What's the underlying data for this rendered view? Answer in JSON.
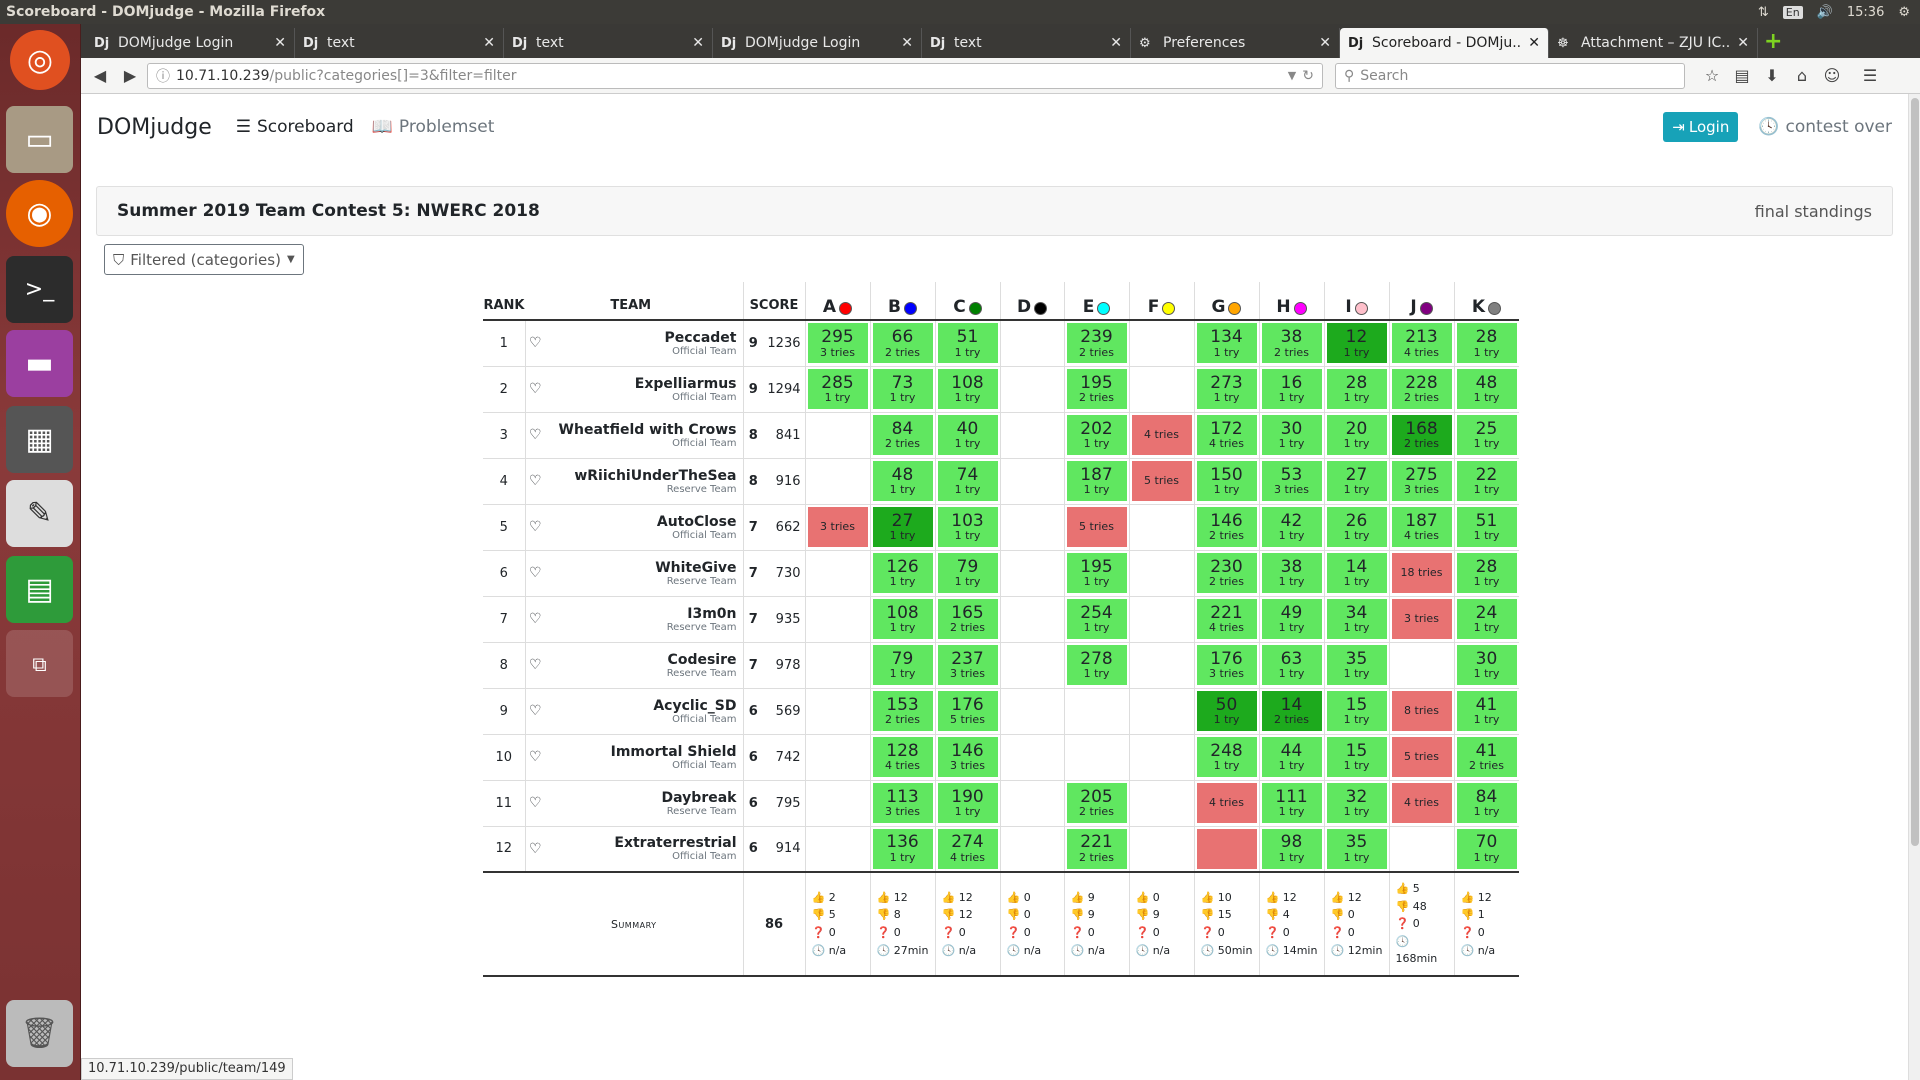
{
  "window": {
    "title": "Scoreboard - DOMjudge - Mozilla Firefox",
    "tray": {
      "network": "⇅",
      "lang": "En",
      "volume": "🔊",
      "time": "15:36",
      "power": "⚙"
    }
  },
  "tabs": [
    {
      "favicon": "Dj",
      "title": "DOMjudge Login",
      "active": false
    },
    {
      "favicon": "Dj",
      "title": "text",
      "active": false
    },
    {
      "favicon": "Dj",
      "title": "text",
      "active": false
    },
    {
      "favicon": "Dj",
      "title": "DOMjudge Login",
      "active": false
    },
    {
      "favicon": "Dj",
      "title": "text",
      "active": false
    },
    {
      "favicon": "⚙",
      "title": "Preferences",
      "active": false
    },
    {
      "favicon": "Dj",
      "title": "Scoreboard - DOMju...",
      "active": true
    },
    {
      "favicon": "☸",
      "title": "Attachment – ZJU IC...",
      "active": false
    }
  ],
  "url": {
    "host": "10.71.10.239",
    "path": "/public?categories[]=3&filter=filter"
  },
  "search": {
    "placeholder": "Search"
  },
  "nav": {
    "brand": "DOMjudge",
    "scoreboard": "Scoreboard",
    "problemset": "Problemset",
    "login": "Login",
    "status": "contest over"
  },
  "contest": {
    "name": "Summer 2019 Team Contest 5: NWERC 2018",
    "state": "final standings"
  },
  "filter": {
    "label": "Filtered (categories)"
  },
  "headers": {
    "rank": "RANK",
    "team": "TEAM",
    "score": "SCORE"
  },
  "problems": [
    {
      "label": "A",
      "color": "#ff0000"
    },
    {
      "label": "B",
      "color": "#0000ff"
    },
    {
      "label": "C",
      "color": "#008000"
    },
    {
      "label": "D",
      "color": "#000000"
    },
    {
      "label": "E",
      "color": "#00ffff"
    },
    {
      "label": "F",
      "color": "#ffff00"
    },
    {
      "label": "G",
      "color": "#ffa500"
    },
    {
      "label": "H",
      "color": "#ff00ff"
    },
    {
      "label": "I",
      "color": "#ffc0cb"
    },
    {
      "label": "J",
      "color": "#800080"
    },
    {
      "label": "K",
      "color": "#808080"
    }
  ],
  "teams": [
    {
      "rank": "1",
      "name": "Peccadet",
      "aff": "Official Team",
      "solved": "9",
      "time": "1236",
      "cells": [
        [
          "c",
          "295",
          "3 tries"
        ],
        [
          "c",
          "66",
          "2 tries"
        ],
        [
          "c",
          "51",
          "1 try"
        ],
        [
          "",
          "",
          " "
        ],
        [
          "c",
          "239",
          "2 tries"
        ],
        [
          "",
          "",
          " "
        ],
        [
          "c",
          "134",
          "1 try"
        ],
        [
          "c",
          "38",
          "2 tries"
        ],
        [
          "f",
          "12",
          "1 try"
        ],
        [
          "c",
          "213",
          "4 tries"
        ],
        [
          "c",
          "28",
          "1 try"
        ]
      ]
    },
    {
      "rank": "2",
      "name": "Expelliarmus",
      "aff": "Official Team",
      "solved": "9",
      "time": "1294",
      "cells": [
        [
          "c",
          "285",
          "1 try"
        ],
        [
          "c",
          "73",
          "1 try"
        ],
        [
          "c",
          "108",
          "1 try"
        ],
        [
          "",
          "",
          " "
        ],
        [
          "c",
          "195",
          "2 tries"
        ],
        [
          "",
          "",
          " "
        ],
        [
          "c",
          "273",
          "1 try"
        ],
        [
          "c",
          "16",
          "1 try"
        ],
        [
          "c",
          "28",
          "1 try"
        ],
        [
          "c",
          "228",
          "2 tries"
        ],
        [
          "c",
          "48",
          "1 try"
        ]
      ]
    },
    {
      "rank": "3",
      "name": "Wheatfield with Crows",
      "aff": "Official Team",
      "solved": "8",
      "time": "841",
      "cells": [
        [
          "",
          "",
          " "
        ],
        [
          "c",
          "84",
          "2 tries"
        ],
        [
          "c",
          "40",
          "1 try"
        ],
        [
          "",
          "",
          " "
        ],
        [
          "c",
          "202",
          "1 try"
        ],
        [
          "i",
          "",
          "4 tries"
        ],
        [
          "c",
          "172",
          "4 tries"
        ],
        [
          "c",
          "30",
          "1 try"
        ],
        [
          "c",
          "20",
          "1 try"
        ],
        [
          "f",
          "168",
          "2 tries"
        ],
        [
          "c",
          "25",
          "1 try"
        ]
      ]
    },
    {
      "rank": "4",
      "name": "wRiichiUnderTheSea",
      "aff": "Reserve Team",
      "solved": "8",
      "time": "916",
      "cells": [
        [
          "",
          "",
          " "
        ],
        [
          "c",
          "48",
          "1 try"
        ],
        [
          "c",
          "74",
          "1 try"
        ],
        [
          "",
          "",
          " "
        ],
        [
          "c",
          "187",
          "1 try"
        ],
        [
          "i",
          "",
          "5 tries"
        ],
        [
          "c",
          "150",
          "1 try"
        ],
        [
          "c",
          "53",
          "3 tries"
        ],
        [
          "c",
          "27",
          "1 try"
        ],
        [
          "c",
          "275",
          "3 tries"
        ],
        [
          "c",
          "22",
          "1 try"
        ]
      ]
    },
    {
      "rank": "5",
      "name": "AutoClose",
      "aff": "Official Team",
      "solved": "7",
      "time": "662",
      "cells": [
        [
          "i",
          "",
          "3 tries"
        ],
        [
          "f",
          "27",
          "1 try"
        ],
        [
          "c",
          "103",
          "1 try"
        ],
        [
          "",
          "",
          " "
        ],
        [
          "i",
          "",
          "5 tries"
        ],
        [
          "",
          "",
          " "
        ],
        [
          "c",
          "146",
          "2 tries"
        ],
        [
          "c",
          "42",
          "1 try"
        ],
        [
          "c",
          "26",
          "1 try"
        ],
        [
          "c",
          "187",
          "4 tries"
        ],
        [
          "c",
          "51",
          "1 try"
        ]
      ]
    },
    {
      "rank": "6",
      "name": "WhiteGive",
      "aff": "Reserve Team",
      "solved": "7",
      "time": "730",
      "cells": [
        [
          "",
          "",
          " "
        ],
        [
          "c",
          "126",
          "1 try"
        ],
        [
          "c",
          "79",
          "1 try"
        ],
        [
          "",
          "",
          " "
        ],
        [
          "c",
          "195",
          "1 try"
        ],
        [
          "",
          "",
          " "
        ],
        [
          "c",
          "230",
          "2 tries"
        ],
        [
          "c",
          "38",
          "1 try"
        ],
        [
          "c",
          "14",
          "1 try"
        ],
        [
          "i",
          "",
          "18 tries"
        ],
        [
          "c",
          "28",
          "1 try"
        ]
      ]
    },
    {
      "rank": "7",
      "name": "I3m0n",
      "aff": "Reserve Team",
      "solved": "7",
      "time": "935",
      "cells": [
        [
          "",
          "",
          " "
        ],
        [
          "c",
          "108",
          "1 try"
        ],
        [
          "c",
          "165",
          "2 tries"
        ],
        [
          "",
          "",
          " "
        ],
        [
          "c",
          "254",
          "1 try"
        ],
        [
          "",
          "",
          " "
        ],
        [
          "c",
          "221",
          "4 tries"
        ],
        [
          "c",
          "49",
          "1 try"
        ],
        [
          "c",
          "34",
          "1 try"
        ],
        [
          "i",
          "",
          "3 tries"
        ],
        [
          "c",
          "24",
          "1 try"
        ]
      ]
    },
    {
      "rank": "8",
      "name": "Codesire",
      "aff": "Reserve Team",
      "solved": "7",
      "time": "978",
      "cells": [
        [
          "",
          "",
          " "
        ],
        [
          "c",
          "79",
          "1 try"
        ],
        [
          "c",
          "237",
          "3 tries"
        ],
        [
          "",
          "",
          " "
        ],
        [
          "c",
          "278",
          "1 try"
        ],
        [
          "",
          "",
          " "
        ],
        [
          "c",
          "176",
          "3 tries"
        ],
        [
          "c",
          "63",
          "1 try"
        ],
        [
          "c",
          "35",
          "1 try"
        ],
        [
          "",
          "",
          " "
        ],
        [
          "c",
          "30",
          "1 try"
        ]
      ]
    },
    {
      "rank": "9",
      "name": "Acyclic_SD",
      "aff": "Official Team",
      "solved": "6",
      "time": "569",
      "cells": [
        [
          "",
          "",
          " "
        ],
        [
          "c",
          "153",
          "2 tries"
        ],
        [
          "c",
          "176",
          "5 tries"
        ],
        [
          "",
          "",
          " "
        ],
        [
          "",
          "",
          " "
        ],
        [
          "",
          "",
          " "
        ],
        [
          "f",
          "50",
          "1 try"
        ],
        [
          "f",
          "14",
          "2 tries"
        ],
        [
          "c",
          "15",
          "1 try"
        ],
        [
          "i",
          "",
          "8 tries"
        ],
        [
          "c",
          "41",
          "1 try"
        ]
      ]
    },
    {
      "rank": "10",
      "name": "Immortal Shield",
      "aff": "Official Team",
      "solved": "6",
      "time": "742",
      "cells": [
        [
          "",
          "",
          " "
        ],
        [
          "c",
          "128",
          "4 tries"
        ],
        [
          "c",
          "146",
          "3 tries"
        ],
        [
          "",
          "",
          " "
        ],
        [
          "",
          "",
          " "
        ],
        [
          "",
          "",
          " "
        ],
        [
          "c",
          "248",
          "1 try"
        ],
        [
          "c",
          "44",
          "1 try"
        ],
        [
          "c",
          "15",
          "1 try"
        ],
        [
          "i",
          "",
          "5 tries"
        ],
        [
          "c",
          "41",
          "2 tries"
        ]
      ]
    },
    {
      "rank": "11",
      "name": "Daybreak",
      "aff": "Reserve Team",
      "solved": "6",
      "time": "795",
      "cells": [
        [
          "",
          "",
          " "
        ],
        [
          "c",
          "113",
          "3 tries"
        ],
        [
          "c",
          "190",
          "1 try"
        ],
        [
          "",
          "",
          " "
        ],
        [
          "c",
          "205",
          "2 tries"
        ],
        [
          "",
          "",
          " "
        ],
        [
          "i",
          "",
          "4 tries"
        ],
        [
          "c",
          "111",
          "1 try"
        ],
        [
          "c",
          "32",
          "1 try"
        ],
        [
          "i",
          "",
          "4 tries"
        ],
        [
          "c",
          "84",
          "1 try"
        ]
      ]
    },
    {
      "rank": "12",
      "name": "Extraterrestrial",
      "aff": "Official Team",
      "solved": "6",
      "time": "914",
      "cells": [
        [
          "",
          "",
          " "
        ],
        [
          "c",
          "136",
          "1 try"
        ],
        [
          "c",
          "274",
          "4 tries"
        ],
        [
          "",
          "",
          " "
        ],
        [
          "c",
          "221",
          "2 tries"
        ],
        [
          "",
          "",
          " "
        ],
        [
          "i",
          "",
          ""
        ],
        [
          "c",
          "98",
          "1 try"
        ],
        [
          "c",
          "35",
          "1 try"
        ],
        [
          "",
          "",
          " "
        ],
        [
          "c",
          "70",
          "1 try"
        ]
      ]
    }
  ],
  "summary": {
    "label": "Summary",
    "total": "86",
    "cols": [
      {
        "acc": "2",
        "rej": "5",
        "pend": "0",
        "first": "n/a"
      },
      {
        "acc": "12",
        "rej": "8",
        "pend": "0",
        "first": "27min"
      },
      {
        "acc": "12",
        "rej": "12",
        "pend": "0",
        "first": "n/a"
      },
      {
        "acc": "0",
        "rej": "0",
        "pend": "0",
        "first": "n/a"
      },
      {
        "acc": "9",
        "rej": "9",
        "pend": "0",
        "first": "n/a"
      },
      {
        "acc": "0",
        "rej": "9",
        "pend": "0",
        "first": "n/a"
      },
      {
        "acc": "10",
        "rej": "15",
        "pend": "0",
        "first": "50min"
      },
      {
        "acc": "12",
        "rej": "4",
        "pend": "0",
        "first": "14min"
      },
      {
        "acc": "12",
        "rej": "0",
        "pend": "0",
        "first": "12min"
      },
      {
        "acc": "5",
        "rej": "48",
        "pend": "0",
        "first": "168min"
      },
      {
        "acc": "12",
        "rej": "1",
        "pend": "0",
        "first": "n/a"
      }
    ]
  },
  "statusbar": {
    "url": "10.71.10.239/public/team/149"
  },
  "launcher": [
    "ubuntu-logo-icon",
    "files-icon",
    "firefox-icon",
    "terminal-icon",
    "workspace-icon",
    "calculator-icon",
    "text-editor-icon",
    "spreadsheet-icon",
    "window-switcher-icon",
    "trash-icon"
  ]
}
